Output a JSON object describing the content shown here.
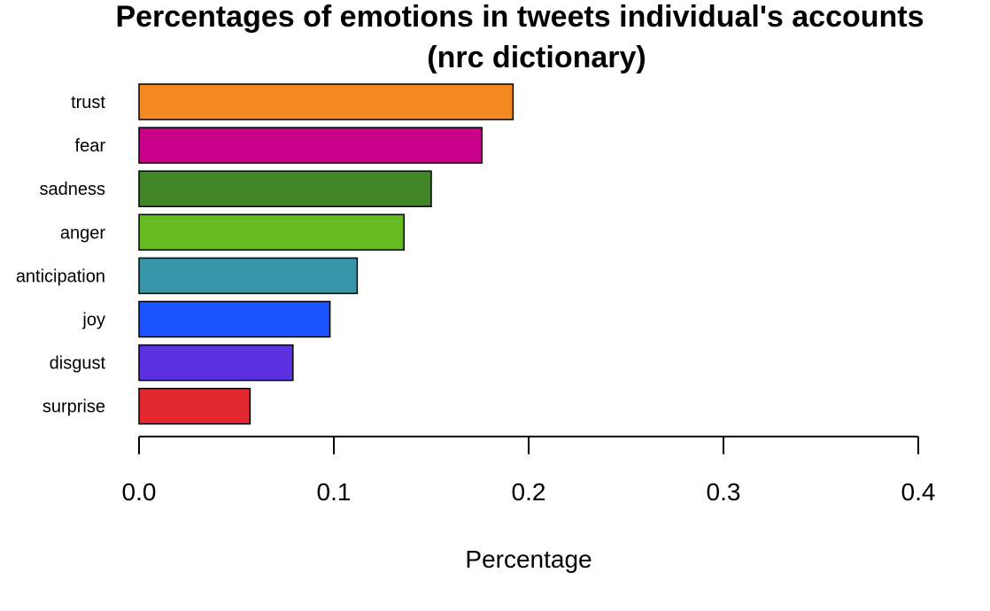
{
  "chart_data": {
    "type": "bar",
    "orientation": "horizontal",
    "title_line1": "Percentages of emotions in tweets individual's accounts",
    "title_line2": "(nrc dictionary)",
    "xlabel": "Percentage",
    "ylabel": "",
    "xlim": [
      0,
      0.4
    ],
    "xticks": [
      "0.0",
      "0.1",
      "0.2",
      "0.3",
      "0.4"
    ],
    "xtick_values": [
      0,
      0.1,
      0.2,
      0.3,
      0.4
    ],
    "grid": false,
    "categories": [
      "trust",
      "fear",
      "sadness",
      "anger",
      "anticipation",
      "joy",
      "disgust",
      "surprise"
    ],
    "values": [
      0.192,
      0.176,
      0.15,
      0.136,
      0.112,
      0.098,
      0.079,
      0.057
    ],
    "colors": [
      "#F28A21",
      "#C8008A",
      "#43862A",
      "#66BB22",
      "#3796A9",
      "#1A53FF",
      "#5A30E0",
      "#E1282F"
    ]
  }
}
